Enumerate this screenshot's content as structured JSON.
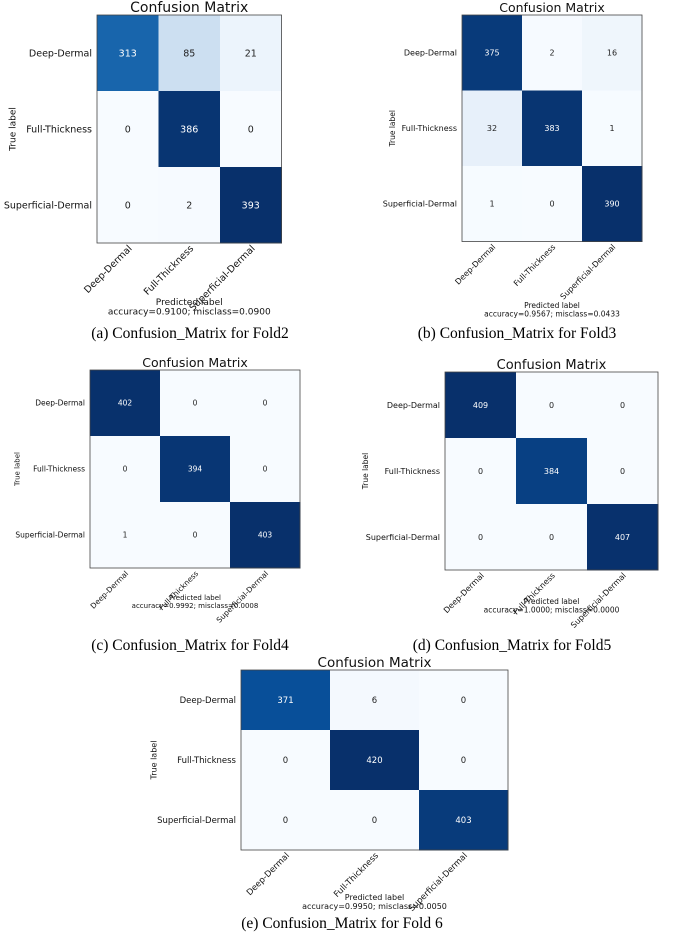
{
  "chart_data": [
    {
      "type": "heatmap",
      "title": "Confusion Matrix",
      "ylabel": "True label",
      "xlabel": "Predicted label",
      "stats": "accuracy=0.9100; misclass=0.0900",
      "caption": "(a) Confusion_Matrix for Fold2",
      "classes": [
        "Deep-Dermal",
        "Full-Thickness",
        "Superficial-Dermal"
      ],
      "matrix": [
        [
          313,
          85,
          21
        ],
        [
          0,
          386,
          0
        ],
        [
          0,
          2,
          393
        ]
      ]
    },
    {
      "type": "heatmap",
      "title": "Confusion Matrix",
      "ylabel": "True label",
      "xlabel": "Predicted label",
      "stats": "accuracy=0.9567; misclass=0.0433",
      "caption": "(b) Confusion_Matrix for Fold3",
      "classes": [
        "Deep-Dermal",
        "Full-Thickness",
        "Superficial-Dermal"
      ],
      "matrix": [
        [
          375,
          2,
          16
        ],
        [
          32,
          383,
          1
        ],
        [
          1,
          0,
          390
        ]
      ]
    },
    {
      "type": "heatmap",
      "title": "Confusion Matrix",
      "ylabel": "True label",
      "xlabel": "Predicted label",
      "stats": "accuracy=0.9992; misclass=0.0008",
      "caption": "(c) Confusion_Matrix for Fold4",
      "classes": [
        "Deep-Dermal",
        "Full-Thickness",
        "Superficial-Dermal"
      ],
      "matrix": [
        [
          402,
          0,
          0
        ],
        [
          0,
          394,
          0
        ],
        [
          1,
          0,
          403
        ]
      ]
    },
    {
      "type": "heatmap",
      "title": "Confusion Matrix",
      "ylabel": "True label",
      "xlabel": "Predicted label",
      "stats": "accuracy=1.0000; misclass=0.0000",
      "caption": "(d) Confusion_Matrix for Fold5",
      "classes": [
        "Deep-Dermal",
        "Full-Thickness",
        "Superficial-Dermal"
      ],
      "matrix": [
        [
          409,
          0,
          0
        ],
        [
          0,
          384,
          0
        ],
        [
          0,
          0,
          407
        ]
      ]
    },
    {
      "type": "heatmap",
      "title": "Confusion Matrix",
      "ylabel": "True label",
      "xlabel": "Predicted label",
      "stats": "accuracy=0.9950; misclass=0.0050",
      "caption": "(e) Confusion_Matrix for Fold 6",
      "classes": [
        "Deep-Dermal",
        "Full-Thickness",
        "Superficial-Dermal"
      ],
      "matrix": [
        [
          371,
          6,
          0
        ],
        [
          0,
          420,
          0
        ],
        [
          0,
          0,
          403
        ]
      ]
    }
  ]
}
